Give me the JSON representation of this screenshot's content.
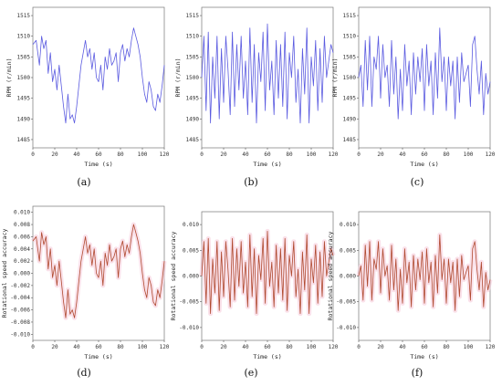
{
  "figure": {
    "panels": [
      "a",
      "b",
      "c",
      "d",
      "e",
      "f"
    ]
  },
  "chart_data": [
    {
      "id": "a",
      "caption": "(a)",
      "type": "line",
      "xlabel": "Time (s)",
      "ylabel": "RPM (r/min)",
      "xlim": [
        0,
        120
      ],
      "ylim": [
        1483,
        1517
      ],
      "xticks": [
        0,
        20,
        40,
        60,
        80,
        100,
        120
      ],
      "yticks": [
        1485,
        1490,
        1495,
        1500,
        1505,
        1510,
        1515
      ],
      "ytick_labels": [
        "1485",
        "1490",
        "1495",
        "1500",
        "1505",
        "1510",
        "1515"
      ],
      "line_color": "#5b5be0",
      "series": [
        {
          "x": [
            0,
            3,
            6,
            8,
            10,
            12,
            14,
            16,
            18,
            20,
            22,
            24,
            26,
            28,
            30,
            32,
            34,
            36,
            38,
            40,
            42,
            44,
            46,
            48,
            50,
            52,
            54,
            56,
            58,
            60,
            62,
            64,
            66,
            68,
            70,
            72,
            74,
            76,
            78,
            80,
            82,
            84,
            86,
            88,
            90,
            92,
            94,
            96,
            98,
            100,
            102,
            104,
            106,
            108,
            110,
            112,
            114,
            116,
            118,
            120
          ],
          "y": [
            1508,
            1509,
            1503,
            1510,
            1507,
            1509,
            1501,
            1506,
            1499,
            1502,
            1497,
            1503,
            1498,
            1493,
            1489,
            1496,
            1490,
            1491,
            1489,
            1493,
            1498,
            1503,
            1506,
            1509,
            1505,
            1507,
            1502,
            1506,
            1500,
            1499,
            1503,
            1497,
            1505,
            1502,
            1507,
            1503,
            1504,
            1506,
            1499,
            1506,
            1508,
            1504,
            1507,
            1505,
            1509,
            1512,
            1510,
            1508,
            1505,
            1500,
            1496,
            1494,
            1499,
            1497,
            1493,
            1492,
            1496,
            1494,
            1498,
            1503
          ]
        }
      ]
    },
    {
      "id": "b",
      "caption": "(b)",
      "type": "line",
      "xlabel": "Time (s)",
      "ylabel": "RPM (r/min)",
      "xlim": [
        0,
        120
      ],
      "ylim": [
        1483,
        1517
      ],
      "xticks": [
        0,
        20,
        40,
        60,
        80,
        100,
        120
      ],
      "yticks": [
        1485,
        1490,
        1495,
        1500,
        1505,
        1510,
        1515
      ],
      "ytick_labels": [
        "1485",
        "1490",
        "1495",
        "1500",
        "1505",
        "1510",
        "1515"
      ],
      "line_color": "#5b5be0",
      "series": [
        {
          "x": [
            0,
            2,
            4,
            6,
            8,
            10,
            12,
            14,
            16,
            18,
            20,
            22,
            24,
            26,
            28,
            30,
            32,
            34,
            36,
            38,
            40,
            42,
            44,
            46,
            48,
            50,
            52,
            54,
            56,
            58,
            60,
            62,
            64,
            66,
            68,
            70,
            72,
            74,
            76,
            78,
            80,
            82,
            84,
            86,
            88,
            90,
            92,
            94,
            96,
            98,
            100,
            102,
            104,
            106,
            108,
            110,
            112,
            114,
            116,
            118,
            120
          ],
          "y": [
            1500,
            1510,
            1492,
            1511,
            1489,
            1505,
            1495,
            1510,
            1490,
            1507,
            1494,
            1510,
            1502,
            1491,
            1511,
            1493,
            1508,
            1497,
            1510,
            1495,
            1504,
            1491,
            1512,
            1494,
            1508,
            1489,
            1506,
            1499,
            1511,
            1492,
            1513,
            1497,
            1504,
            1491,
            1509,
            1495,
            1508,
            1493,
            1511,
            1490,
            1506,
            1500,
            1510,
            1494,
            1502,
            1489,
            1507,
            1496,
            1512,
            1489,
            1505,
            1498,
            1509,
            1492,
            1507,
            1494,
            1510,
            1500,
            1504,
            1508,
            1506
          ]
        }
      ]
    },
    {
      "id": "c",
      "caption": "(c)",
      "type": "line",
      "xlabel": "Time (s)",
      "ylabel": "RPM (r/min)",
      "xlim": [
        0,
        120
      ],
      "ylim": [
        1483,
        1517
      ],
      "xticks": [
        0,
        20,
        40,
        60,
        80,
        100,
        120
      ],
      "yticks": [
        1485,
        1490,
        1495,
        1500,
        1505,
        1510,
        1515
      ],
      "ytick_labels": [
        "1485",
        "1490",
        "1495",
        "1500",
        "1505",
        "1510",
        "1515"
      ],
      "line_color": "#5b5be0",
      "series": [
        {
          "x": [
            0,
            2,
            4,
            6,
            8,
            10,
            12,
            14,
            16,
            18,
            20,
            22,
            24,
            26,
            28,
            30,
            32,
            34,
            36,
            38,
            40,
            42,
            44,
            46,
            48,
            50,
            52,
            54,
            56,
            58,
            60,
            62,
            64,
            66,
            68,
            70,
            72,
            74,
            76,
            78,
            80,
            82,
            84,
            86,
            88,
            90,
            92,
            94,
            96,
            98,
            100,
            102,
            104,
            106,
            108,
            110,
            112,
            114,
            116,
            118,
            120
          ],
          "y": [
            1500,
            1503,
            1493,
            1509,
            1497,
            1510,
            1493,
            1505,
            1502,
            1510,
            1495,
            1508,
            1500,
            1503,
            1493,
            1509,
            1496,
            1505,
            1490,
            1502,
            1492,
            1508,
            1498,
            1504,
            1491,
            1506,
            1496,
            1505,
            1499,
            1507,
            1492,
            1508,
            1498,
            1504,
            1491,
            1506,
            1495,
            1512,
            1499,
            1505,
            1492,
            1505,
            1498,
            1504,
            1490,
            1505,
            1494,
            1506,
            1499,
            1501,
            1503,
            1493,
            1508,
            1510,
            1502,
            1496,
            1504,
            1491,
            1501,
            1496,
            1499
          ]
        }
      ]
    },
    {
      "id": "d",
      "caption": "(d)",
      "type": "line",
      "xlabel": "Time (s)",
      "ylabel": "Rotational speed accuracy",
      "xlim": [
        0,
        120
      ],
      "ylim": [
        -0.011,
        0.011
      ],
      "xticks": [
        0,
        20,
        40,
        60,
        80,
        100,
        120
      ],
      "yticks": [
        -0.01,
        -0.008,
        -0.006,
        -0.004,
        -0.002,
        0.0,
        0.002,
        0.004,
        0.006,
        0.008,
        0.01
      ],
      "ytick_labels": [
        "-0.010",
        "-0.008",
        "-0.006",
        "-0.004",
        "-0.002",
        "0.000",
        "0.002",
        "0.004",
        "0.006",
        "0.008",
        "0.010"
      ],
      "line_color": "#b04a30",
      "series": [
        {
          "x": [
            0,
            3,
            6,
            8,
            10,
            12,
            14,
            16,
            18,
            20,
            22,
            24,
            26,
            28,
            30,
            32,
            34,
            36,
            38,
            40,
            42,
            44,
            46,
            48,
            50,
            52,
            54,
            56,
            58,
            60,
            62,
            64,
            66,
            68,
            70,
            72,
            74,
            76,
            78,
            80,
            82,
            84,
            86,
            88,
            90,
            92,
            94,
            96,
            98,
            100,
            102,
            104,
            106,
            108,
            110,
            112,
            114,
            116,
            118,
            120
          ],
          "y": [
            0.0053,
            0.006,
            0.002,
            0.0067,
            0.0047,
            0.006,
            0.0007,
            0.004,
            -0.0007,
            0.0013,
            -0.002,
            0.002,
            -0.0013,
            -0.0047,
            -0.0073,
            -0.0027,
            -0.0067,
            -0.006,
            -0.0073,
            -0.0047,
            -0.0013,
            0.002,
            0.004,
            0.006,
            0.0033,
            0.0047,
            0.0013,
            0.004,
            0.0,
            -0.0007,
            0.002,
            -0.002,
            0.0033,
            0.0013,
            0.0047,
            0.002,
            0.0027,
            0.004,
            -0.0007,
            0.004,
            0.0053,
            0.0027,
            0.0047,
            0.0033,
            0.006,
            0.008,
            0.0067,
            0.0053,
            0.0033,
            0.0,
            -0.0027,
            -0.004,
            -0.0007,
            -0.002,
            -0.0047,
            -0.0053,
            -0.0027,
            -0.004,
            -0.0013,
            0.002
          ]
        }
      ]
    },
    {
      "id": "e",
      "caption": "(e)",
      "type": "line",
      "xlabel": "Time (s)",
      "ylabel": "Rotational speed accuracy",
      "xlim": [
        0,
        120
      ],
      "ylim": [
        -0.0125,
        0.0125
      ],
      "xticks": [
        0,
        20,
        40,
        60,
        80,
        100,
        120
      ],
      "yticks": [
        -0.01,
        -0.005,
        0.0,
        0.005,
        0.01
      ],
      "ytick_labels": [
        "-0.010",
        "-0.005",
        "0.000",
        "0.005",
        "0.010"
      ],
      "line_color": "#b04a30",
      "series": [
        {
          "x": [
            0,
            2,
            4,
            6,
            8,
            10,
            12,
            14,
            16,
            18,
            20,
            22,
            24,
            26,
            28,
            30,
            32,
            34,
            36,
            38,
            40,
            42,
            44,
            46,
            48,
            50,
            52,
            54,
            56,
            58,
            60,
            62,
            64,
            66,
            68,
            70,
            72,
            74,
            76,
            78,
            80,
            82,
            84,
            86,
            88,
            90,
            92,
            94,
            96,
            98,
            100,
            102,
            104,
            106,
            108,
            110,
            112,
            114,
            116,
            118,
            120
          ],
          "y": [
            0.0,
            0.0067,
            -0.0053,
            0.0073,
            -0.0073,
            0.0033,
            -0.0033,
            0.0067,
            -0.0067,
            0.0047,
            -0.004,
            0.0067,
            0.0013,
            -0.006,
            0.0073,
            -0.0047,
            0.0053,
            -0.002,
            0.0067,
            -0.0033,
            0.0027,
            -0.006,
            0.008,
            -0.004,
            0.0053,
            -0.0073,
            0.004,
            -0.0007,
            0.0073,
            -0.0053,
            0.0087,
            -0.002,
            0.0027,
            -0.006,
            0.006,
            -0.0033,
            0.0053,
            -0.0047,
            0.0073,
            -0.0067,
            0.004,
            0.0,
            0.0067,
            -0.004,
            0.0013,
            -0.0073,
            0.0047,
            -0.0027,
            0.008,
            -0.0073,
            0.0033,
            -0.0013,
            0.006,
            -0.0053,
            0.0047,
            -0.004,
            0.0067,
            0.0,
            0.0027,
            0.0053,
            0.004
          ]
        }
      ]
    },
    {
      "id": "f",
      "caption": "(f)",
      "type": "line",
      "xlabel": "Time (s)",
      "ylabel": "Rotational speed accuracy",
      "xlim": [
        0,
        120
      ],
      "ylim": [
        -0.0125,
        0.0125
      ],
      "xticks": [
        0,
        20,
        40,
        60,
        80,
        100,
        120
      ],
      "yticks": [
        -0.01,
        -0.005,
        0.0,
        0.005,
        0.01
      ],
      "ytick_labels": [
        "-0.010",
        "-0.005",
        "0.000",
        "0.005",
        "0.010"
      ],
      "line_color": "#b04a30",
      "series": [
        {
          "x": [
            0,
            2,
            4,
            6,
            8,
            10,
            12,
            14,
            16,
            18,
            20,
            22,
            24,
            26,
            28,
            30,
            32,
            34,
            36,
            38,
            40,
            42,
            44,
            46,
            48,
            50,
            52,
            54,
            56,
            58,
            60,
            62,
            64,
            66,
            68,
            70,
            72,
            74,
            76,
            78,
            80,
            82,
            84,
            86,
            88,
            90,
            92,
            94,
            96,
            98,
            100,
            102,
            104,
            106,
            108,
            110,
            112,
            114,
            116,
            118,
            120
          ],
          "y": [
            0.0,
            0.002,
            -0.0047,
            0.006,
            -0.002,
            0.0067,
            -0.0047,
            0.0033,
            0.0013,
            0.0067,
            -0.0033,
            0.0053,
            0.0,
            0.002,
            -0.0047,
            0.006,
            -0.0027,
            0.0033,
            -0.0067,
            0.0013,
            -0.0053,
            0.0053,
            -0.0013,
            0.0027,
            -0.006,
            0.004,
            -0.0027,
            0.0033,
            -0.0007,
            0.0047,
            -0.0053,
            0.0053,
            -0.0013,
            0.0027,
            -0.006,
            0.004,
            -0.0033,
            0.008,
            -0.0007,
            0.0033,
            -0.0053,
            0.0033,
            -0.0013,
            0.0027,
            -0.0067,
            0.0033,
            -0.004,
            0.004,
            -0.0007,
            0.0007,
            0.002,
            -0.0047,
            0.0053,
            0.0067,
            0.0013,
            -0.0027,
            0.0027,
            -0.006,
            0.0007,
            -0.0027,
            -0.0007
          ]
        }
      ]
    }
  ]
}
